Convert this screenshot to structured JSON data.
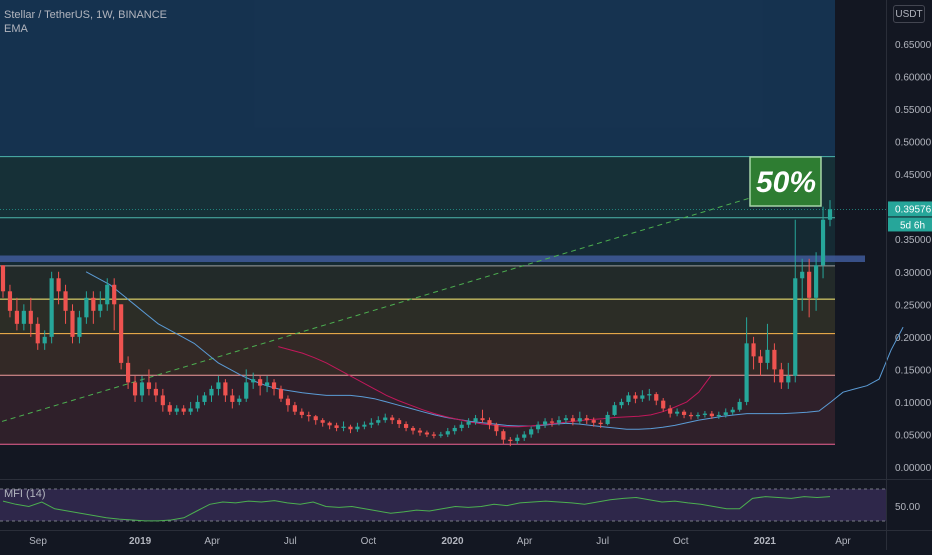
{
  "header": {
    "title": "Stellar / TetherUS, 1W, BINANCE",
    "indicator": "EMA"
  },
  "currency_button": "USDT",
  "price_badge": {
    "value": "0.39576",
    "countdown": "5d 6h"
  },
  "annotation": {
    "text": "50%"
  },
  "mfi": {
    "label": "MFI (14)",
    "axis_label": "50.00"
  },
  "colors": {
    "background": "#131722",
    "up": "#26a69a",
    "down": "#ef5350",
    "ema_fast": "#5b9bd5",
    "ema_slow": "#c2185b",
    "trend": "#4caf50",
    "badge_bg": "#26a69a",
    "annotation_bg": "#2e7d32",
    "mfi_line": "#4caf50",
    "mfi_band": "#7e57c2"
  },
  "chart_data": {
    "type": "candlestick",
    "title": "Stellar / TetherUS, 1W, BINANCE",
    "ylim": [
      0,
      0.7
    ],
    "y_ticks": [
      "0.00000",
      "0.05000",
      "0.10000",
      "0.15000",
      "0.20000",
      "0.25000",
      "0.30000",
      "0.35000",
      "0.40000",
      "0.45000",
      "0.50000",
      "0.55000",
      "0.60000",
      "0.65000"
    ],
    "y_tick_values": [
      0,
      0.05,
      0.1,
      0.15,
      0.2,
      0.25,
      0.3,
      0.35,
      0.4,
      0.45,
      0.5,
      0.55,
      0.6,
      0.65
    ],
    "x_ticks": [
      "Sep",
      "2019",
      "Apr",
      "Jul",
      "Oct",
      "2020",
      "Apr",
      "Jul",
      "Oct",
      "2021",
      "Apr"
    ],
    "x_tick_weeks": [
      1,
      18,
      30,
      43,
      56,
      70,
      82,
      95,
      108,
      122,
      135
    ],
    "total_weeks": 140,
    "last_price": 0.39576,
    "fib_levels": [
      0.477,
      0.383,
      0.309,
      0.258,
      0.205,
      0.141,
      0.035
    ],
    "fib_colors": [
      "#4db6ac",
      "#4db6ac",
      "#9e9e9e",
      "#fff176",
      "#ffb74d",
      "#ef9a9a",
      "#f06292"
    ],
    "fib_fills": [
      "rgba(33,150,243,0.22)",
      "rgba(38,166,154,0.18)",
      "rgba(38,166,154,0.14)",
      "rgba(120,144,80,0.16)",
      "rgba(180,160,60,0.16)",
      "rgba(200,130,60,0.18)",
      "rgba(200,80,90,0.16)"
    ],
    "support_zone": [
      0.315,
      0.325
    ],
    "candles": [
      [
        0.31,
        0.27,
        0.31,
        0.26
      ],
      [
        0.27,
        0.24,
        0.28,
        0.23
      ],
      [
        0.24,
        0.22,
        0.26,
        0.21
      ],
      [
        0.22,
        0.24,
        0.25,
        0.21
      ],
      [
        0.24,
        0.22,
        0.26,
        0.2
      ],
      [
        0.22,
        0.19,
        0.23,
        0.18
      ],
      [
        0.19,
        0.2,
        0.21,
        0.18
      ],
      [
        0.2,
        0.29,
        0.3,
        0.19
      ],
      [
        0.29,
        0.27,
        0.3,
        0.25
      ],
      [
        0.27,
        0.24,
        0.28,
        0.22
      ],
      [
        0.24,
        0.2,
        0.25,
        0.19
      ],
      [
        0.2,
        0.23,
        0.24,
        0.19
      ],
      [
        0.23,
        0.26,
        0.27,
        0.22
      ],
      [
        0.26,
        0.24,
        0.27,
        0.22
      ],
      [
        0.24,
        0.25,
        0.27,
        0.23
      ],
      [
        0.25,
        0.28,
        0.29,
        0.24
      ],
      [
        0.28,
        0.25,
        0.29,
        0.21
      ],
      [
        0.25,
        0.16,
        0.25,
        0.15
      ],
      [
        0.16,
        0.13,
        0.17,
        0.12
      ],
      [
        0.13,
        0.11,
        0.14,
        0.1
      ],
      [
        0.11,
        0.13,
        0.14,
        0.1
      ],
      [
        0.13,
        0.12,
        0.15,
        0.11
      ],
      [
        0.12,
        0.11,
        0.13,
        0.1
      ],
      [
        0.11,
        0.095,
        0.12,
        0.085
      ],
      [
        0.095,
        0.085,
        0.1,
        0.08
      ],
      [
        0.085,
        0.09,
        0.095,
        0.08
      ],
      [
        0.09,
        0.085,
        0.095,
        0.08
      ],
      [
        0.085,
        0.09,
        0.1,
        0.08
      ],
      [
        0.09,
        0.1,
        0.11,
        0.085
      ],
      [
        0.1,
        0.11,
        0.115,
        0.095
      ],
      [
        0.11,
        0.12,
        0.125,
        0.1
      ],
      [
        0.12,
        0.13,
        0.14,
        0.11
      ],
      [
        0.13,
        0.11,
        0.135,
        0.1
      ],
      [
        0.11,
        0.1,
        0.12,
        0.09
      ],
      [
        0.1,
        0.105,
        0.11,
        0.095
      ],
      [
        0.105,
        0.13,
        0.15,
        0.1
      ],
      [
        0.13,
        0.135,
        0.145,
        0.12
      ],
      [
        0.135,
        0.125,
        0.14,
        0.11
      ],
      [
        0.125,
        0.13,
        0.14,
        0.115
      ],
      [
        0.13,
        0.12,
        0.135,
        0.11
      ],
      [
        0.12,
        0.105,
        0.125,
        0.1
      ],
      [
        0.105,
        0.095,
        0.11,
        0.085
      ],
      [
        0.095,
        0.085,
        0.1,
        0.08
      ],
      [
        0.085,
        0.08,
        0.09,
        0.075
      ],
      [
        0.08,
        0.078,
        0.085,
        0.07
      ],
      [
        0.078,
        0.072,
        0.08,
        0.065
      ],
      [
        0.072,
        0.068,
        0.075,
        0.062
      ],
      [
        0.068,
        0.064,
        0.07,
        0.058
      ],
      [
        0.064,
        0.06,
        0.068,
        0.055
      ],
      [
        0.06,
        0.062,
        0.07,
        0.055
      ],
      [
        0.062,
        0.058,
        0.065,
        0.052
      ],
      [
        0.058,
        0.062,
        0.068,
        0.054
      ],
      [
        0.062,
        0.065,
        0.07,
        0.058
      ],
      [
        0.065,
        0.068,
        0.075,
        0.06
      ],
      [
        0.068,
        0.072,
        0.078,
        0.064
      ],
      [
        0.072,
        0.076,
        0.082,
        0.068
      ],
      [
        0.076,
        0.072,
        0.08,
        0.066
      ],
      [
        0.072,
        0.066,
        0.075,
        0.06
      ],
      [
        0.066,
        0.06,
        0.07,
        0.055
      ],
      [
        0.06,
        0.056,
        0.063,
        0.05
      ],
      [
        0.056,
        0.053,
        0.06,
        0.048
      ],
      [
        0.053,
        0.05,
        0.056,
        0.046
      ],
      [
        0.05,
        0.048,
        0.054,
        0.044
      ],
      [
        0.048,
        0.05,
        0.054,
        0.045
      ],
      [
        0.05,
        0.055,
        0.06,
        0.046
      ],
      [
        0.055,
        0.06,
        0.064,
        0.05
      ],
      [
        0.06,
        0.065,
        0.07,
        0.055
      ],
      [
        0.065,
        0.07,
        0.075,
        0.06
      ],
      [
        0.07,
        0.075,
        0.08,
        0.065
      ],
      [
        0.075,
        0.072,
        0.088,
        0.068
      ],
      [
        0.072,
        0.065,
        0.076,
        0.058
      ],
      [
        0.065,
        0.055,
        0.068,
        0.048
      ],
      [
        0.055,
        0.042,
        0.058,
        0.035
      ],
      [
        0.042,
        0.04,
        0.046,
        0.032
      ],
      [
        0.04,
        0.045,
        0.05,
        0.035
      ],
      [
        0.045,
        0.05,
        0.055,
        0.04
      ],
      [
        0.05,
        0.058,
        0.062,
        0.045
      ],
      [
        0.058,
        0.065,
        0.07,
        0.052
      ],
      [
        0.065,
        0.07,
        0.075,
        0.06
      ],
      [
        0.07,
        0.068,
        0.075,
        0.062
      ],
      [
        0.068,
        0.072,
        0.078,
        0.064
      ],
      [
        0.072,
        0.075,
        0.08,
        0.066
      ],
      [
        0.075,
        0.07,
        0.08,
        0.064
      ],
      [
        0.07,
        0.075,
        0.085,
        0.066
      ],
      [
        0.075,
        0.072,
        0.08,
        0.066
      ],
      [
        0.072,
        0.068,
        0.076,
        0.062
      ],
      [
        0.068,
        0.066,
        0.072,
        0.06
      ],
      [
        0.066,
        0.08,
        0.085,
        0.064
      ],
      [
        0.08,
        0.095,
        0.1,
        0.078
      ],
      [
        0.095,
        0.1,
        0.105,
        0.09
      ],
      [
        0.1,
        0.11,
        0.115,
        0.095
      ],
      [
        0.11,
        0.105,
        0.115,
        0.098
      ],
      [
        0.105,
        0.11,
        0.118,
        0.1
      ],
      [
        0.11,
        0.112,
        0.12,
        0.102
      ],
      [
        0.112,
        0.102,
        0.115,
        0.095
      ],
      [
        0.102,
        0.09,
        0.106,
        0.085
      ],
      [
        0.09,
        0.082,
        0.095,
        0.076
      ],
      [
        0.082,
        0.085,
        0.09,
        0.078
      ],
      [
        0.085,
        0.08,
        0.088,
        0.075
      ],
      [
        0.08,
        0.078,
        0.084,
        0.073
      ],
      [
        0.078,
        0.08,
        0.084,
        0.074
      ],
      [
        0.08,
        0.082,
        0.086,
        0.076
      ],
      [
        0.082,
        0.078,
        0.086,
        0.074
      ],
      [
        0.078,
        0.08,
        0.085,
        0.074
      ],
      [
        0.08,
        0.084,
        0.09,
        0.076
      ],
      [
        0.084,
        0.088,
        0.092,
        0.08
      ],
      [
        0.088,
        0.1,
        0.105,
        0.085
      ],
      [
        0.1,
        0.19,
        0.23,
        0.095
      ],
      [
        0.19,
        0.17,
        0.2,
        0.15
      ],
      [
        0.17,
        0.16,
        0.18,
        0.14
      ],
      [
        0.16,
        0.18,
        0.22,
        0.15
      ],
      [
        0.18,
        0.15,
        0.19,
        0.13
      ],
      [
        0.15,
        0.13,
        0.16,
        0.12
      ],
      [
        0.13,
        0.14,
        0.16,
        0.12
      ],
      [
        0.14,
        0.29,
        0.38,
        0.13
      ],
      [
        0.29,
        0.3,
        0.32,
        0.24
      ],
      [
        0.3,
        0.26,
        0.32,
        0.23
      ],
      [
        0.26,
        0.31,
        0.33,
        0.24
      ],
      [
        0.31,
        0.38,
        0.4,
        0.29
      ],
      [
        0.38,
        0.396,
        0.41,
        0.37
      ]
    ],
    "ema_fast": [
      0.3,
      0.29,
      0.28,
      0.265,
      0.25,
      0.235,
      0.22,
      0.21,
      0.2,
      0.19,
      0.175,
      0.16,
      0.15,
      0.14,
      0.132,
      0.125,
      0.12,
      0.117,
      0.114,
      0.112,
      0.11,
      0.11,
      0.11,
      0.108,
      0.105,
      0.1,
      0.095,
      0.09,
      0.085,
      0.08,
      0.076,
      0.073,
      0.07,
      0.068,
      0.066,
      0.064,
      0.063,
      0.063,
      0.064,
      0.066,
      0.067,
      0.066,
      0.064,
      0.062,
      0.06,
      0.058,
      0.058,
      0.059,
      0.061,
      0.064,
      0.068,
      0.072,
      0.075,
      0.078,
      0.08,
      0.082,
      0.082,
      0.082,
      0.082,
      0.083,
      0.084,
      0.086,
      0.1,
      0.115,
      0.12,
      0.125,
      0.135,
      0.18,
      0.215
    ],
    "ema_fast_start": 14,
    "ema_fast_step": 2,
    "ema_slow": [
      0.185,
      0.18,
      0.175,
      0.168,
      0.16,
      0.15,
      0.14,
      0.13,
      0.12,
      0.11,
      0.102,
      0.095,
      0.088,
      0.082,
      0.077,
      0.073,
      0.069,
      0.066,
      0.064,
      0.062,
      0.062,
      0.063,
      0.065,
      0.067,
      0.069,
      0.071,
      0.073,
      0.074,
      0.076,
      0.077,
      0.078,
      0.08,
      0.085,
      0.092,
      0.1,
      0.115,
      0.14
    ],
    "ema_slow_start": 46,
    "ema_slow_step": 2,
    "trend_line": [
      [
        0,
        0.07
      ],
      [
        136,
        0.445
      ]
    ],
    "mfi": [
      62,
      55,
      50,
      60,
      45,
      40,
      35,
      30,
      25,
      22,
      20,
      18,
      18,
      20,
      25,
      40,
      55,
      60,
      58,
      62,
      60,
      63,
      58,
      55,
      60,
      50,
      48,
      50,
      45,
      40,
      35,
      38,
      42,
      40,
      45,
      50,
      48,
      50,
      55,
      52,
      58,
      60,
      62,
      60,
      58,
      55,
      60,
      65,
      68,
      70,
      65,
      60,
      62,
      58,
      55,
      50,
      45,
      45,
      68,
      72,
      70,
      68,
      72,
      70,
      72
    ]
  }
}
